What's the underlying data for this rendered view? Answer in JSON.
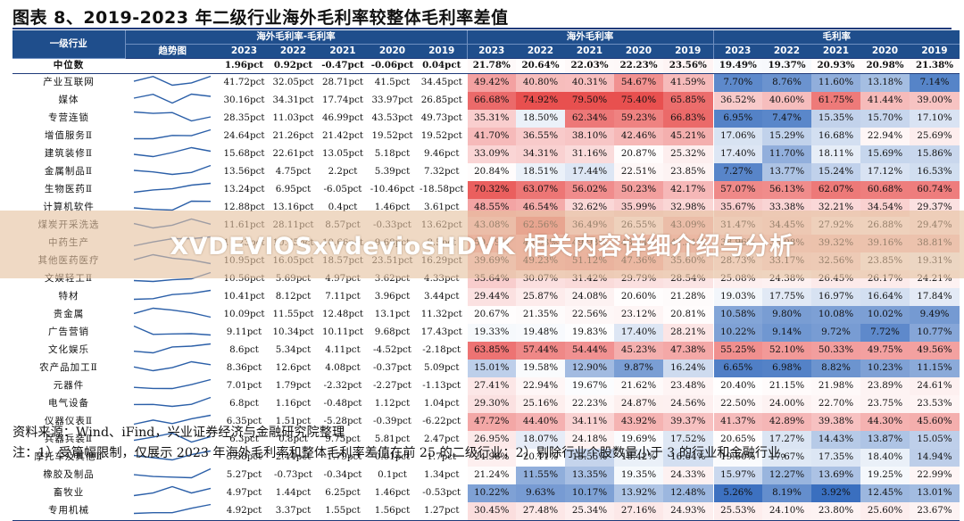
{
  "title": "图表 8、2019-2023 年二级行业海外毛利率较整体毛利率差值",
  "headers": {
    "industry": "一级行业",
    "trend": "趋势图",
    "group1": "海外毛利率-毛利率",
    "group2": "海外毛利率",
    "group3": "毛利率",
    "years": [
      "2023",
      "2022",
      "2021",
      "2020",
      "2019"
    ]
  },
  "rows": [
    {
      "name": "中位数",
      "diff": [
        "1.96pct",
        "0.92pct",
        "-0.47pct",
        "-0.06pct",
        "0.04pct"
      ],
      "overseas": [
        "21.78%",
        "20.64%",
        "22.03%",
        "22.23%",
        "23.56%"
      ],
      "gross": [
        "19.49%",
        "19.37%",
        "20.93%",
        "20.98%",
        "21.38%"
      ]
    },
    {
      "name": "产业互联网",
      "diff": [
        "41.72pct",
        "32.05pct",
        "28.71pct",
        "41.5pct",
        "34.45pct"
      ],
      "overseas": [
        "49.42%",
        "40.80%",
        "40.31%",
        "54.67%",
        "41.59%"
      ],
      "gross": [
        "7.70%",
        "8.76%",
        "11.60%",
        "13.18%",
        "7.14%"
      ]
    },
    {
      "name": "媒体",
      "diff": [
        "30.16pct",
        "34.31pct",
        "17.74pct",
        "33.97pct",
        "26.85pct"
      ],
      "overseas": [
        "66.68%",
        "74.92%",
        "79.50%",
        "75.40%",
        "65.85%"
      ],
      "gross": [
        "36.52%",
        "40.60%",
        "61.75%",
        "41.44%",
        "39.00%"
      ]
    },
    {
      "name": "专营连锁",
      "diff": [
        "28.35pct",
        "11.03pct",
        "46.99pct",
        "43.53pct",
        "49.73pct"
      ],
      "overseas": [
        "35.31%",
        "18.50%",
        "62.34%",
        "59.23%",
        "66.83%"
      ],
      "gross": [
        "6.95%",
        "7.47%",
        "15.35%",
        "15.70%",
        "17.10%"
      ]
    },
    {
      "name": "增值服务Ⅱ",
      "diff": [
        "24.64pct",
        "21.26pct",
        "21.42pct",
        "19.52pct",
        "19.52pct"
      ],
      "overseas": [
        "41.70%",
        "36.55%",
        "38.10%",
        "42.46%",
        "45.21%"
      ],
      "gross": [
        "17.06%",
        "15.29%",
        "16.68%",
        "22.94%",
        "25.69%"
      ]
    },
    {
      "name": "建筑装修Ⅱ",
      "diff": [
        "15.68pct",
        "22.61pct",
        "13.05pct",
        "5.18pct",
        "9.46pct"
      ],
      "overseas": [
        "33.09%",
        "34.31%",
        "31.16%",
        "20.87%",
        "25.32%"
      ],
      "gross": [
        "17.40%",
        "11.70%",
        "18.11%",
        "15.69%",
        "15.86%"
      ]
    },
    {
      "name": "金属制品Ⅱ",
      "diff": [
        "13.56pct",
        "4.75pct",
        "2.2pct",
        "5.39pct",
        "7.32pct"
      ],
      "overseas": [
        "20.84%",
        "18.51%",
        "17.44%",
        "22.51%",
        "23.85%"
      ],
      "gross": [
        "7.27%",
        "13.77%",
        "15.24%",
        "17.12%",
        "16.53%"
      ]
    },
    {
      "name": "生物医药Ⅱ",
      "diff": [
        "13.24pct",
        "6.95pct",
        "-6.05pct",
        "-10.46pct",
        "-18.58pct"
      ],
      "overseas": [
        "70.32%",
        "63.07%",
        "56.02%",
        "50.23%",
        "42.17%"
      ],
      "gross": [
        "57.07%",
        "56.13%",
        "62.07%",
        "60.68%",
        "60.74%"
      ]
    },
    {
      "name": "计算机软件",
      "diff": [
        "12.88pct",
        "13.16pct",
        "0.4pct",
        "1.46pct",
        "3.61pct"
      ],
      "overseas": [
        "48.55%",
        "46.54%",
        "32.62%",
        "35.99%",
        "32.98%"
      ],
      "gross": [
        "35.67%",
        "33.38%",
        "32.21%",
        "34.54%",
        "29.37%"
      ]
    },
    {
      "name": "煤炭开采洗选",
      "diff": [
        "11.61pct",
        "28.11pct",
        "8.57pct",
        "-0.33pct",
        "13.62pct"
      ],
      "overseas": [
        "43.08%",
        "62.56%",
        "36.49%",
        "26.55%",
        "43.09%"
      ],
      "gross": [
        "31.47%",
        "34.45%",
        "27.92%",
        "26.88%",
        "29.47%"
      ]
    },
    {
      "name": "中药生产",
      "diff": [
        "11.23pct",
        "10.65pct",
        "10.66pct",
        "9.68pct",
        "8.5pct"
      ],
      "overseas": [
        "50.19%",
        "49.63%",
        "49.98%",
        "48.84%",
        "47.31%"
      ],
      "gross": [
        "38.96%",
        "38.98%",
        "39.32%",
        "39.16%",
        "38.81%"
      ]
    },
    {
      "name": "其他医药医疗",
      "diff": [
        "10.95pct",
        "16.05pct",
        "18.57pct",
        "23.51pct",
        "16.29pct"
      ],
      "overseas": [
        "39.69%",
        "49.23%",
        "51.12%",
        "47.36%",
        "35.60%"
      ],
      "gross": [
        "28.73%",
        "33.17%",
        "32.56%",
        "23.85%",
        "19.31%"
      ]
    },
    {
      "name": "文娱轻工Ⅱ",
      "diff": [
        "10.56pct",
        "5.69pct",
        "4.97pct",
        "3.62pct",
        "4.33pct"
      ],
      "overseas": [
        "35.64%",
        "30.07%",
        "31.42%",
        "29.79%",
        "28.54%"
      ],
      "gross": [
        "25.08%",
        "24.38%",
        "26.45%",
        "26.17%",
        "24.21%"
      ]
    },
    {
      "name": "特材",
      "diff": [
        "10.41pct",
        "8.12pct",
        "7.11pct",
        "3.96pct",
        "3.44pct"
      ],
      "overseas": [
        "29.44%",
        "25.87%",
        "24.08%",
        "20.60%",
        "21.28%"
      ],
      "gross": [
        "19.03%",
        "17.75%",
        "16.97%",
        "16.64%",
        "17.84%"
      ]
    },
    {
      "name": "贵金属",
      "diff": [
        "10.09pct",
        "11.55pct",
        "12.48pct",
        "13.1pct",
        "11.32pct"
      ],
      "overseas": [
        "20.67%",
        "21.35%",
        "22.56%",
        "23.12%",
        "20.81%"
      ],
      "gross": [
        "10.58%",
        "9.80%",
        "10.08%",
        "10.02%",
        "9.49%"
      ]
    },
    {
      "name": "广告营销",
      "diff": [
        "9.11pct",
        "10.34pct",
        "10.11pct",
        "9.68pct",
        "17.43pct"
      ],
      "overseas": [
        "19.33%",
        "19.48%",
        "19.83%",
        "17.40%",
        "28.21%"
      ],
      "gross": [
        "10.22%",
        "9.14%",
        "9.72%",
        "7.72%",
        "10.77%"
      ]
    },
    {
      "name": "文化娱乐",
      "diff": [
        "8.6pct",
        "5.34pct",
        "4.11pct",
        "-4.52pct",
        "-2.18pct"
      ],
      "overseas": [
        "63.85%",
        "57.44%",
        "54.44%",
        "45.23%",
        "47.38%"
      ],
      "gross": [
        "55.25%",
        "52.10%",
        "50.33%",
        "49.75%",
        "49.56%"
      ]
    },
    {
      "name": "农产品加工Ⅱ",
      "diff": [
        "8.36pct",
        "12.6pct",
        "4.08pct",
        "-0.37pct",
        "5.09pct"
      ],
      "overseas": [
        "15.01%",
        "19.58%",
        "12.90%",
        "9.87%",
        "16.24%"
      ],
      "gross": [
        "6.65%",
        "6.98%",
        "8.82%",
        "10.23%",
        "11.15%"
      ]
    },
    {
      "name": "元器件",
      "diff": [
        "7.01pct",
        "1.79pct",
        "-2.32pct",
        "-2.27pct",
        "-1.13pct"
      ],
      "overseas": [
        "27.41%",
        "22.94%",
        "19.67%",
        "21.62%",
        "23.48%"
      ],
      "gross": [
        "20.40%",
        "21.15%",
        "21.98%",
        "23.89%",
        "24.61%"
      ]
    },
    {
      "name": "电气设备",
      "diff": [
        "6.8pct",
        "1.16pct",
        "-0.48pct",
        "1.12pct",
        "1.04pct"
      ],
      "overseas": [
        "29.30%",
        "25.16%",
        "22.23%",
        "24.87%",
        "24.56%"
      ],
      "gross": [
        "22.50%",
        "24.00%",
        "22.70%",
        "23.75%",
        "23.53%"
      ]
    },
    {
      "name": "仪器仪表Ⅱ",
      "diff": [
        "6.35pct",
        "1.51pct",
        "-5.28pct",
        "-0.39pct",
        "-6.22pct"
      ],
      "overseas": [
        "47.72%",
        "44.40%",
        "34.11%",
        "43.92%",
        "39.37%"
      ],
      "gross": [
        "41.37%",
        "42.89%",
        "39.38%",
        "44.30%",
        "45.60%"
      ]
    },
    {
      "name": "兵器兵装Ⅱ",
      "diff": [
        "6.3pct",
        "0.8pct",
        "9.75pct",
        "5.81pct",
        "2.47pct"
      ],
      "overseas": [
        "26.95%",
        "18.07%",
        "24.18%",
        "19.69%",
        "17.52%"
      ],
      "gross": [
        "20.65%",
        "17.27%",
        "14.43%",
        "13.87%",
        "15.05%"
      ]
    },
    {
      "name": "摩托车及其他Ⅱ",
      "diff": [
        "5.38pct",
        "2.44pct",
        "-1.79pct",
        "0.01pct",
        "1.7pct"
      ],
      "overseas": [
        "24.98%",
        "20.11%",
        "15.55%",
        "18.42%",
        "16.64%"
      ],
      "gross": [
        "19.60%",
        "17.67%",
        "17.35%",
        "18.40%",
        "14.94%"
      ]
    },
    {
      "name": "橡胶及制品",
      "diff": [
        "5.27pct",
        "-0.73pct",
        "-0.34pct",
        "0.1pct",
        "1.34pct"
      ],
      "overseas": [
        "21.24%",
        "11.55%",
        "13.35%",
        "19.35%",
        "24.33%"
      ],
      "gross": [
        "15.97%",
        "12.27%",
        "13.69%",
        "19.25%",
        "22.99%"
      ]
    },
    {
      "name": "畜牧业",
      "diff": [
        "4.97pct",
        "1.44pct",
        "6.25pct",
        "1.46pct",
        "-0.53pct"
      ],
      "overseas": [
        "10.22%",
        "9.63%",
        "10.17%",
        "13.92%",
        "12.48%"
      ],
      "gross": [
        "5.26%",
        "8.19%",
        "3.92%",
        "12.45%",
        "13.01%"
      ]
    },
    {
      "name": "专用机械",
      "diff": [
        "4.92pct",
        "3.37pct",
        "1.55pct",
        "1.56pct",
        "1.27pct"
      ],
      "overseas": [
        "30.45%",
        "27.48%",
        "25.34%",
        "27.16%",
        "24.93%"
      ],
      "gross": [
        "25.53%",
        "24.10%",
        "23.80%",
        "25.60%",
        "23.67%"
      ]
    }
  ],
  "notes": {
    "source": "资料来源：Wind、iFind，兴业证券经济与金融研究院整理",
    "note": "注：1）受篇幅限制，仅展示 2023 年海外毛利率和整体毛利率差值在前 25 的二级行业；2）剔除行业个股数量小于 3 的行业和金融行业。"
  },
  "overlay": "XVDEVIOSxvdeviosHDVK 相关内容详细介绍与分析",
  "colors": {
    "header": "#1f4e8c",
    "red": "#e8504f",
    "blue": "#3a6fbf",
    "sparkline": "#2b5fa8"
  }
}
